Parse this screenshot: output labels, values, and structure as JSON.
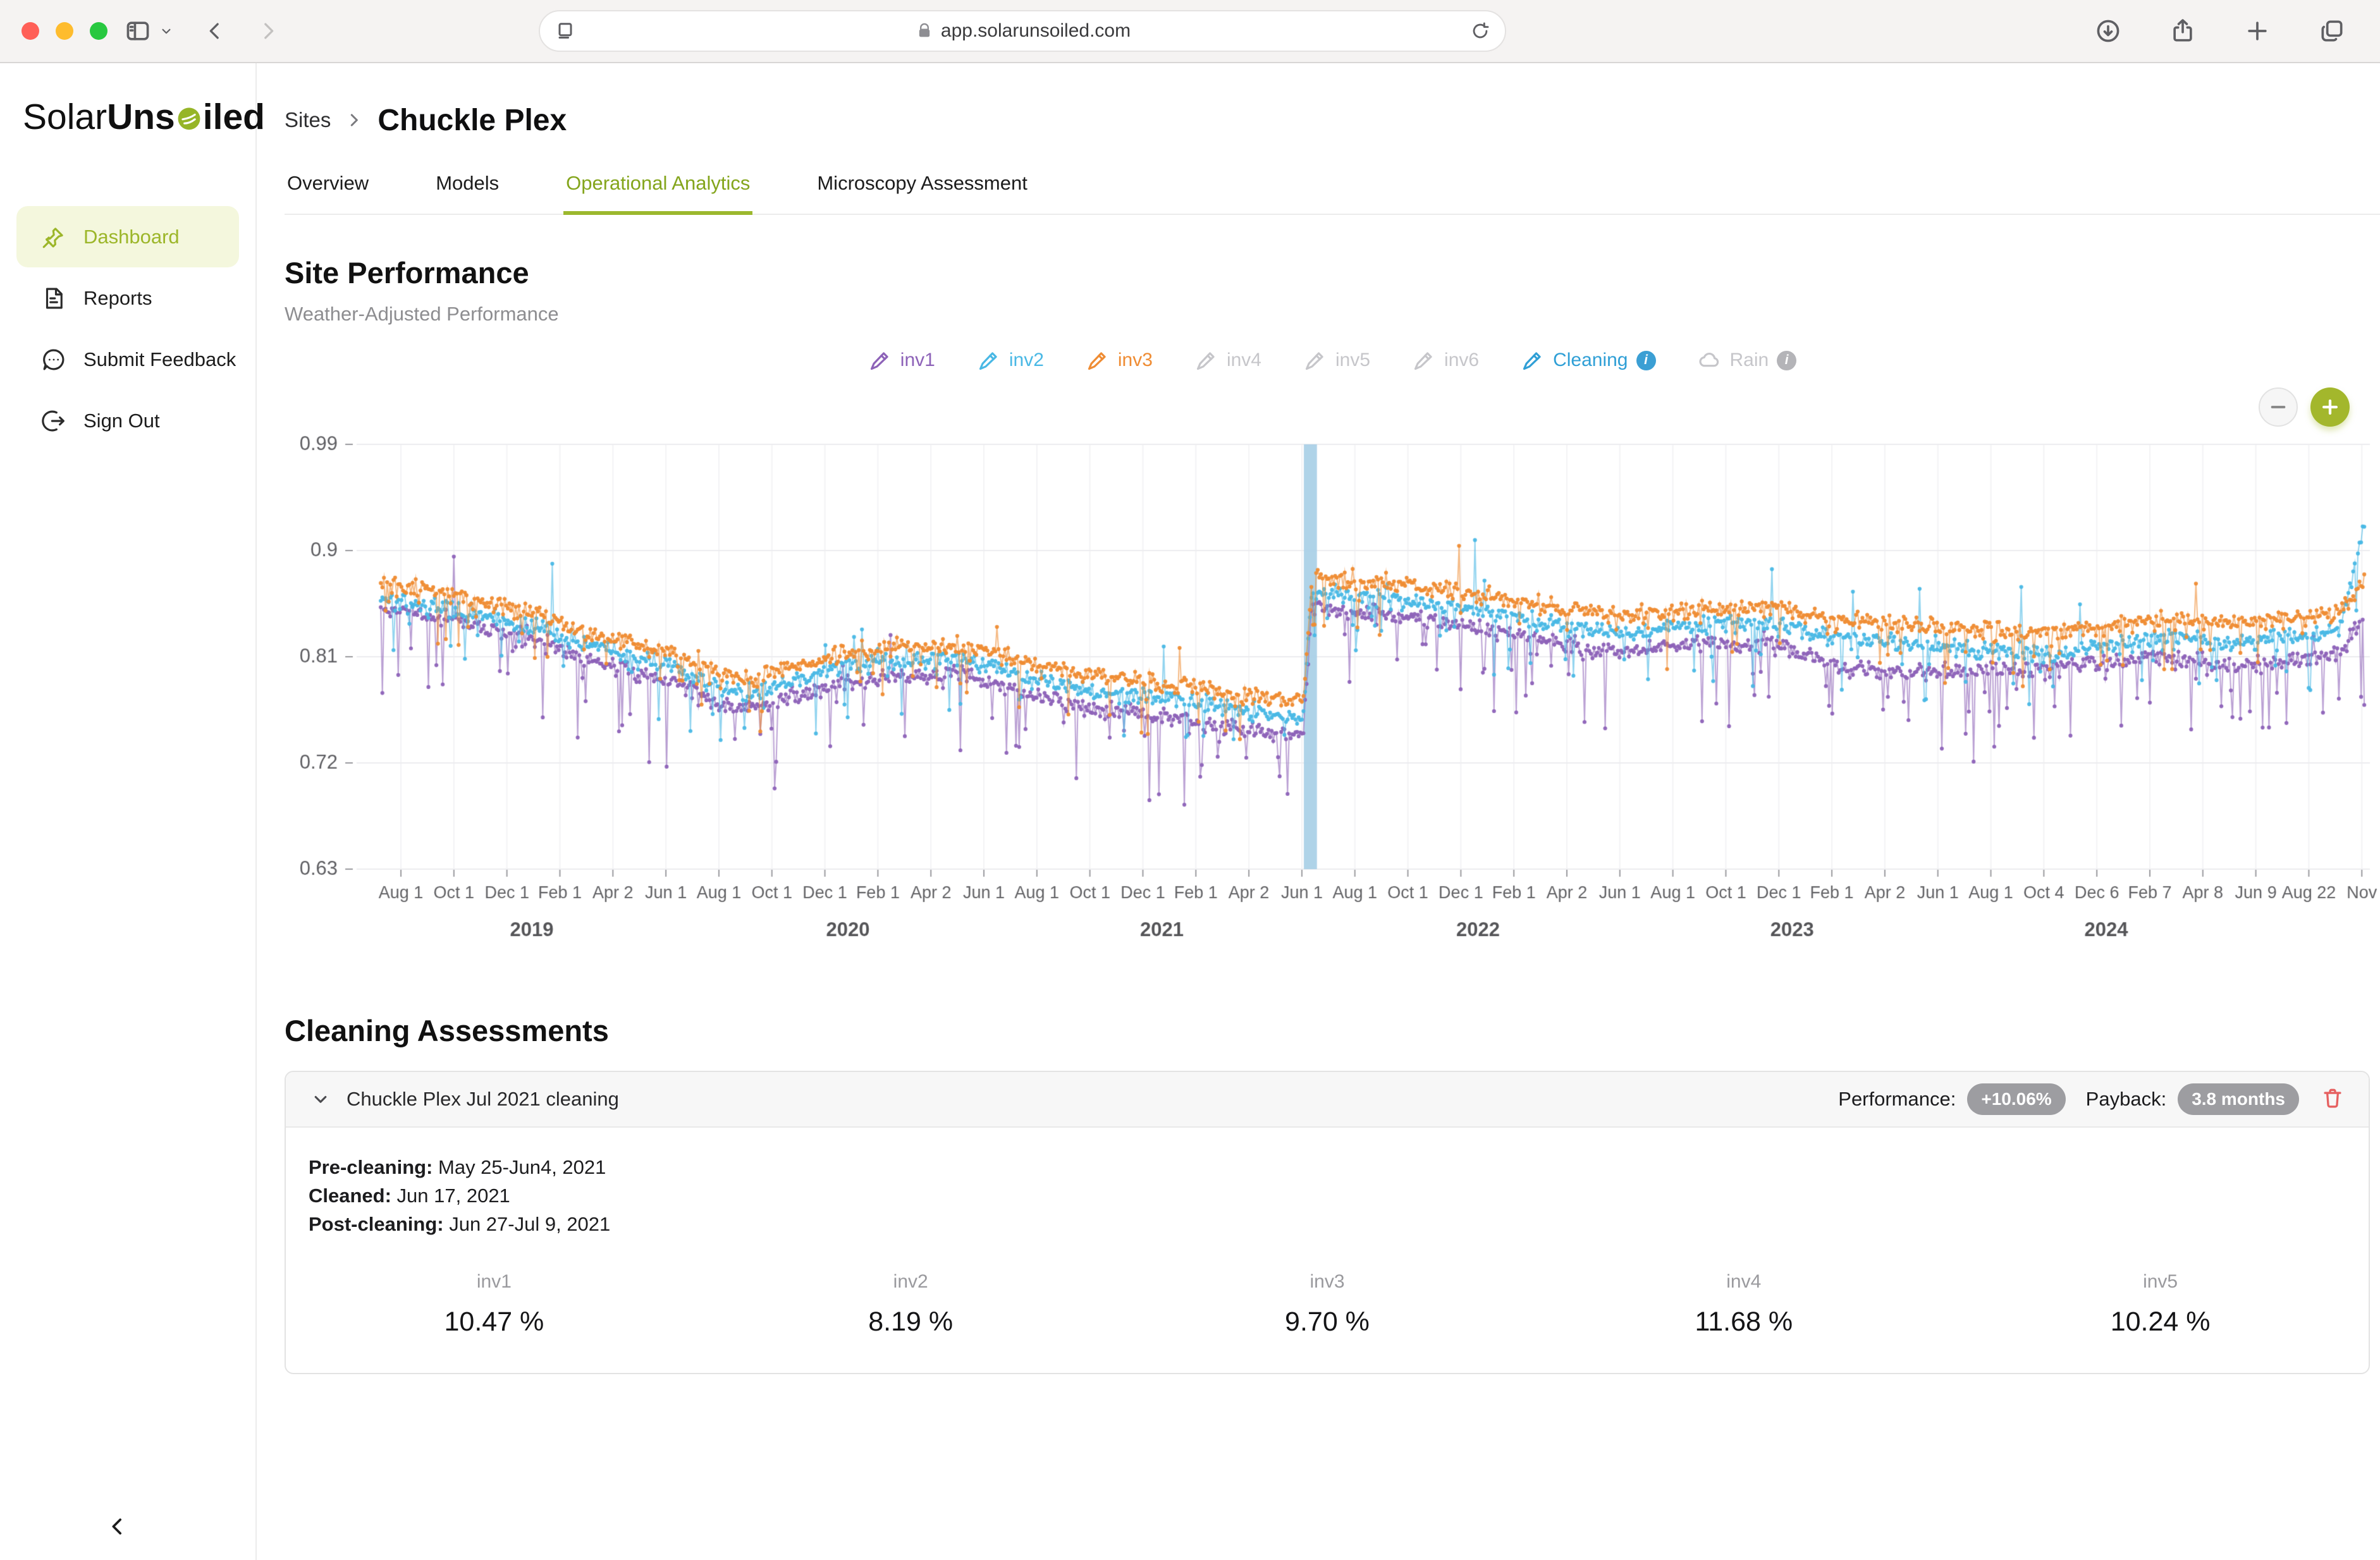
{
  "browser": {
    "url": "app.solarunsoiled.com",
    "traffic_lights": [
      "#ff5f57",
      "#febc2e",
      "#28c840"
    ]
  },
  "icons": {
    "info_glyph": "i"
  },
  "sidebar": {
    "logo": {
      "light": "Solar",
      "bold_pre": "Uns",
      "bold_post": "iled"
    },
    "items": [
      {
        "label": "Dashboard",
        "active": true
      },
      {
        "label": "Reports",
        "active": false
      },
      {
        "label": "Submit Feedback",
        "active": false
      },
      {
        "label": "Sign Out",
        "active": false
      }
    ]
  },
  "breadcrumb": {
    "root": "Sites",
    "current": "Chuckle Plex"
  },
  "tabs": [
    {
      "label": "Overview",
      "active": false
    },
    {
      "label": "Models",
      "active": false
    },
    {
      "label": "Operational Analytics",
      "active": true
    },
    {
      "label": "Microscopy Assessment",
      "active": false
    }
  ],
  "performance_section": {
    "title": "Site Performance",
    "subtitle": "Weather-Adjusted Performance"
  },
  "legend": [
    {
      "name": "inv1",
      "label": "inv1",
      "color": "#8d62b8",
      "icon": "marker",
      "info": false
    },
    {
      "name": "inv2",
      "label": "inv2",
      "color": "#49b8e5",
      "icon": "marker",
      "info": false
    },
    {
      "name": "inv3",
      "label": "inv3",
      "color": "#ef8c33",
      "icon": "marker",
      "info": false
    },
    {
      "name": "inv4",
      "label": "inv4",
      "color": "#c6c6ca",
      "icon": "marker",
      "info": false
    },
    {
      "name": "inv5",
      "label": "inv5",
      "color": "#c6c6ca",
      "icon": "marker",
      "info": false
    },
    {
      "name": "inv6",
      "label": "inv6",
      "color": "#c6c6ca",
      "icon": "marker",
      "info": false
    },
    {
      "name": "cleaning",
      "label": "Cleaning",
      "color": "#2f9fd6",
      "icon": "marker",
      "info": true,
      "info_color": "#3b9fd4"
    },
    {
      "name": "rain",
      "label": "Rain",
      "color": "#c6c6ca",
      "icon": "cloud",
      "info": true,
      "info_color": "#b4b4b8"
    }
  ],
  "chart_data": {
    "type": "scatter",
    "title": "Weather-Adjusted Performance",
    "ylabel": "",
    "xlabel": "",
    "grid": true,
    "ylim": [
      0.63,
      0.99
    ],
    "yticks": [
      "0.99",
      "0.9",
      "0.81",
      "0.72",
      "0.63"
    ],
    "ytick_values": [
      0.99,
      0.9,
      0.81,
      0.72,
      0.63
    ],
    "xtick_labels": [
      "Aug 1",
      "Oct 1",
      "Dec 1",
      "Feb 1",
      "Apr 2",
      "Jun 1",
      "Aug 1",
      "Oct 1",
      "Dec 1",
      "Feb 1",
      "Apr 2",
      "Jun 1",
      "Aug 1",
      "Oct 1",
      "Dec 1",
      "Feb 1",
      "Apr 2",
      "Jun 1",
      "Aug 1",
      "Oct 1",
      "Dec 1",
      "Feb 1",
      "Apr 2",
      "Jun 1",
      "Aug 1",
      "Oct 1",
      "Dec 1",
      "Feb 1",
      "Apr 2",
      "Jun 1",
      "Aug 1",
      "Oct 4",
      "Dec 6",
      "Feb 7",
      "Apr 8",
      "Jun 9",
      "Aug 22",
      "Nov"
    ],
    "xtick_start": 0.022,
    "xtick_end": 0.996,
    "year_labels": [
      "2019",
      "2020",
      "2021",
      "2022",
      "2023",
      "2024"
    ],
    "year_fracs": [
      0.087,
      0.244,
      0.4,
      0.557,
      0.713,
      0.869
    ],
    "cleaning_band": {
      "color": "#a6cee5",
      "frac_start": 0.4705,
      "frac_end": 0.477
    },
    "x_start": 0.012,
    "x_end": 0.998,
    "points": 1250,
    "series": [
      {
        "name": "inv1",
        "color": "#8d62b8",
        "seed": 7,
        "noise": 0.011,
        "down_spike": [
          0.12,
          0.07
        ],
        "up_spike": [
          0.008,
          0.05
        ],
        "anchors": [
          [
            0.012,
            0.85
          ],
          [
            0.05,
            0.842
          ],
          [
            0.09,
            0.824
          ],
          [
            0.13,
            0.8
          ],
          [
            0.16,
            0.788
          ],
          [
            0.19,
            0.764
          ],
          [
            0.215,
            0.775
          ],
          [
            0.24,
            0.788
          ],
          [
            0.27,
            0.794
          ],
          [
            0.3,
            0.796
          ],
          [
            0.33,
            0.78
          ],
          [
            0.36,
            0.768
          ],
          [
            0.4,
            0.76
          ],
          [
            0.44,
            0.748
          ],
          [
            0.47,
            0.742
          ],
          [
            0.4745,
            0.852
          ],
          [
            0.49,
            0.848
          ],
          [
            0.52,
            0.844
          ],
          [
            0.56,
            0.834
          ],
          [
            0.6,
            0.82
          ],
          [
            0.63,
            0.814
          ],
          [
            0.66,
            0.82
          ],
          [
            0.7,
            0.822
          ],
          [
            0.73,
            0.804
          ],
          [
            0.76,
            0.796
          ],
          [
            0.8,
            0.798
          ],
          [
            0.84,
            0.8
          ],
          [
            0.87,
            0.806
          ],
          [
            0.9,
            0.81
          ],
          [
            0.93,
            0.8
          ],
          [
            0.96,
            0.806
          ],
          [
            0.985,
            0.812
          ],
          [
            0.998,
            0.845
          ]
        ]
      },
      {
        "name": "inv2",
        "color": "#49b8e5",
        "seed": 13,
        "noise": 0.011,
        "down_spike": [
          0.09,
          0.05
        ],
        "up_spike": [
          0.015,
          0.06
        ],
        "anchors": [
          [
            0.012,
            0.858
          ],
          [
            0.05,
            0.85
          ],
          [
            0.09,
            0.834
          ],
          [
            0.13,
            0.812
          ],
          [
            0.16,
            0.8
          ],
          [
            0.19,
            0.778
          ],
          [
            0.215,
            0.788
          ],
          [
            0.24,
            0.8
          ],
          [
            0.27,
            0.806
          ],
          [
            0.3,
            0.808
          ],
          [
            0.33,
            0.794
          ],
          [
            0.36,
            0.782
          ],
          [
            0.4,
            0.775
          ],
          [
            0.44,
            0.765
          ],
          [
            0.47,
            0.758
          ],
          [
            0.4745,
            0.866
          ],
          [
            0.49,
            0.862
          ],
          [
            0.52,
            0.858
          ],
          [
            0.56,
            0.848
          ],
          [
            0.6,
            0.836
          ],
          [
            0.63,
            0.83
          ],
          [
            0.66,
            0.836
          ],
          [
            0.7,
            0.838
          ],
          [
            0.73,
            0.828
          ],
          [
            0.76,
            0.822
          ],
          [
            0.8,
            0.816
          ],
          [
            0.84,
            0.812
          ],
          [
            0.87,
            0.82
          ],
          [
            0.9,
            0.826
          ],
          [
            0.93,
            0.822
          ],
          [
            0.96,
            0.826
          ],
          [
            0.985,
            0.832
          ],
          [
            0.998,
            0.925
          ]
        ]
      },
      {
        "name": "inv3",
        "color": "#ef8c33",
        "seed": 29,
        "noise": 0.011,
        "down_spike": [
          0.09,
          0.045
        ],
        "up_spike": [
          0.008,
          0.04
        ],
        "anchors": [
          [
            0.012,
            0.87
          ],
          [
            0.05,
            0.862
          ],
          [
            0.09,
            0.846
          ],
          [
            0.13,
            0.824
          ],
          [
            0.16,
            0.812
          ],
          [
            0.19,
            0.79
          ],
          [
            0.215,
            0.8
          ],
          [
            0.24,
            0.812
          ],
          [
            0.27,
            0.818
          ],
          [
            0.3,
            0.82
          ],
          [
            0.33,
            0.806
          ],
          [
            0.36,
            0.795
          ],
          [
            0.4,
            0.788
          ],
          [
            0.44,
            0.778
          ],
          [
            0.47,
            0.772
          ],
          [
            0.4745,
            0.88
          ],
          [
            0.49,
            0.876
          ],
          [
            0.52,
            0.872
          ],
          [
            0.56,
            0.862
          ],
          [
            0.6,
            0.85
          ],
          [
            0.63,
            0.845
          ],
          [
            0.66,
            0.85
          ],
          [
            0.7,
            0.852
          ],
          [
            0.73,
            0.843
          ],
          [
            0.76,
            0.838
          ],
          [
            0.8,
            0.833
          ],
          [
            0.84,
            0.83
          ],
          [
            0.87,
            0.836
          ],
          [
            0.9,
            0.841
          ],
          [
            0.93,
            0.838
          ],
          [
            0.96,
            0.842
          ],
          [
            0.985,
            0.848
          ],
          [
            0.998,
            0.872
          ]
        ]
      }
    ]
  },
  "assessments": {
    "title": "Cleaning Assessments",
    "card": {
      "name": "Chuckle Plex Jul 2021 cleaning",
      "performance_label": "Performance:",
      "performance_value": "+10.06%",
      "payback_label": "Payback:",
      "payback_value": "3.8 months",
      "pre_cleaning_label": "Pre-cleaning:",
      "pre_cleaning": " May 25-Jun4, 2021",
      "cleaned_label": "Cleaned:",
      "cleaned": " Jun 17, 2021",
      "post_cleaning_label": "Post-cleaning:",
      "post_cleaning": " Jun 27-Jul 9, 2021",
      "stats": [
        {
          "label": "inv1",
          "value": "10.47 %"
        },
        {
          "label": "inv2",
          "value": "8.19 %"
        },
        {
          "label": "inv3",
          "value": "9.70 %"
        },
        {
          "label": "inv4",
          "value": "11.68 %"
        },
        {
          "label": "inv5",
          "value": "10.24 %"
        }
      ]
    }
  }
}
